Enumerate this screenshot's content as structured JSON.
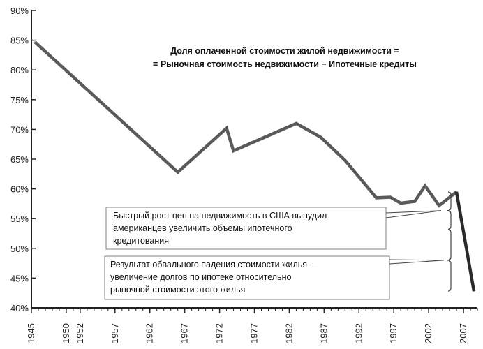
{
  "chart_data": {
    "type": "line",
    "title_lines": [
      "Доля оплаченной стоимости жилой недвижимости =",
      "= Рыночная стоимость недвижимости − Ипотечные кредиты"
    ],
    "xlabel": "",
    "ylabel": "",
    "xlim": [
      1945,
      2009
    ],
    "ylim": [
      40,
      90
    ],
    "x_tick_labels": [
      "1945",
      "1950",
      "1952",
      "1957",
      "1962",
      "1967",
      "1972",
      "1977",
      "1982",
      "1987",
      "1992",
      "1997",
      "2002",
      "2007"
    ],
    "y_tick_labels": [
      "40%",
      "45%",
      "50%",
      "55%",
      "60%",
      "65%",
      "70%",
      "75%",
      "80%",
      "85%",
      "90%"
    ],
    "series": [
      {
        "color": "#5a5a5a",
        "x": [
          1945.5,
          1966,
          1973,
          1974,
          1983,
          1986.5,
          1990,
          1994.5,
          1996.5,
          1998,
          2000,
          2001.5,
          2003.5,
          2006
        ],
        "y": [
          84.7,
          62.8,
          70.2,
          66.4,
          71.0,
          68.7,
          64.8,
          58.5,
          58.6,
          57.6,
          57.9,
          60.5,
          57.2,
          59.5
        ]
      },
      {
        "color": "#2a2a2a",
        "x": [
          2006,
          2008.5
        ],
        "y": [
          59.5,
          42.8
        ]
      }
    ],
    "annotations": [
      {
        "lines": [
          "Быстрый рост цен на недвижимость в США вынудил",
          "американцев увеличить объемы ипотечного",
          "кредитования"
        ],
        "bracket_y": [
          59.5,
          53.2
        ]
      },
      {
        "lines": [
          "Результат обвального падения стоимости жилья —",
          "увеличение долгов по ипотеке относительно",
          "рыночной стоимости этого жилья"
        ],
        "bracket_y": [
          53.2,
          42.8
        ]
      }
    ],
    "grid": false,
    "legend": "none"
  }
}
